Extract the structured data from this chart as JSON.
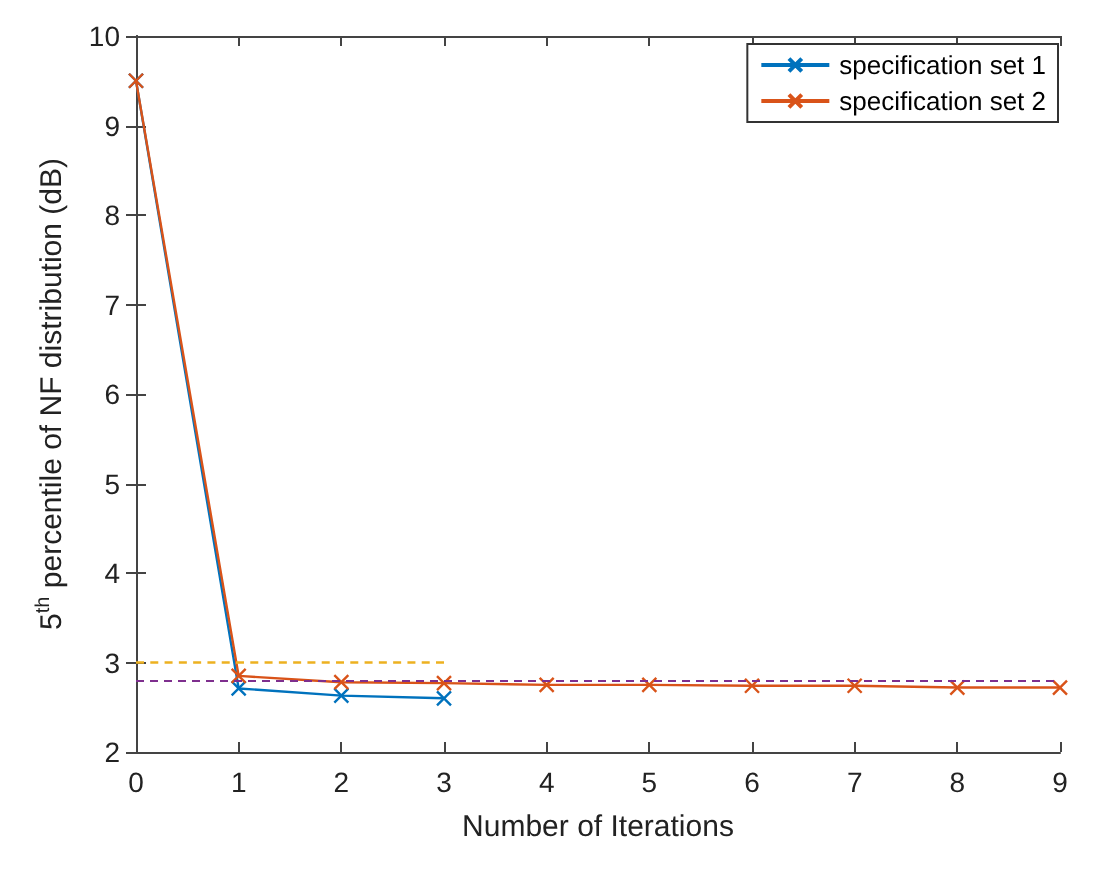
{
  "chart_data": {
    "type": "line",
    "xlabel": "Number of Iterations",
    "ylabel": "5$^{th}$ percentile of NF distribution (dB)",
    "x": [
      0,
      1,
      2,
      3,
      4,
      5,
      6,
      7,
      8,
      9
    ],
    "series": [
      {
        "name": "specification set 1",
        "color": "#0072bd",
        "x": [
          0,
          1,
          2,
          3
        ],
        "values": [
          9.5,
          2.71,
          2.63,
          2.6
        ]
      },
      {
        "name": "specification set 2",
        "color": "#d95319",
        "values": [
          9.5,
          2.85,
          2.78,
          2.77,
          2.75,
          2.75,
          2.74,
          2.74,
          2.72,
          2.72
        ]
      },
      {
        "color": "#edb120",
        "x": [
          0,
          3
        ],
        "values": [
          3,
          3
        ],
        "line_style": "dashed",
        "marker": "none"
      }
    ],
    "ref_lines": [
      {
        "axis": "y",
        "value": 2.8,
        "color": "#7e2f8e",
        "line_style": "dashed"
      }
    ],
    "marker": "cross",
    "legend": "top right",
    "grid": false,
    "xlim": [
      0,
      9
    ],
    "xticks": [
      0,
      1,
      2,
      3,
      4,
      5,
      6,
      7,
      8,
      9
    ],
    "ylim": [
      2,
      10
    ],
    "yticks": [
      2,
      3,
      4,
      5,
      6,
      7,
      8,
      9,
      10
    ]
  }
}
